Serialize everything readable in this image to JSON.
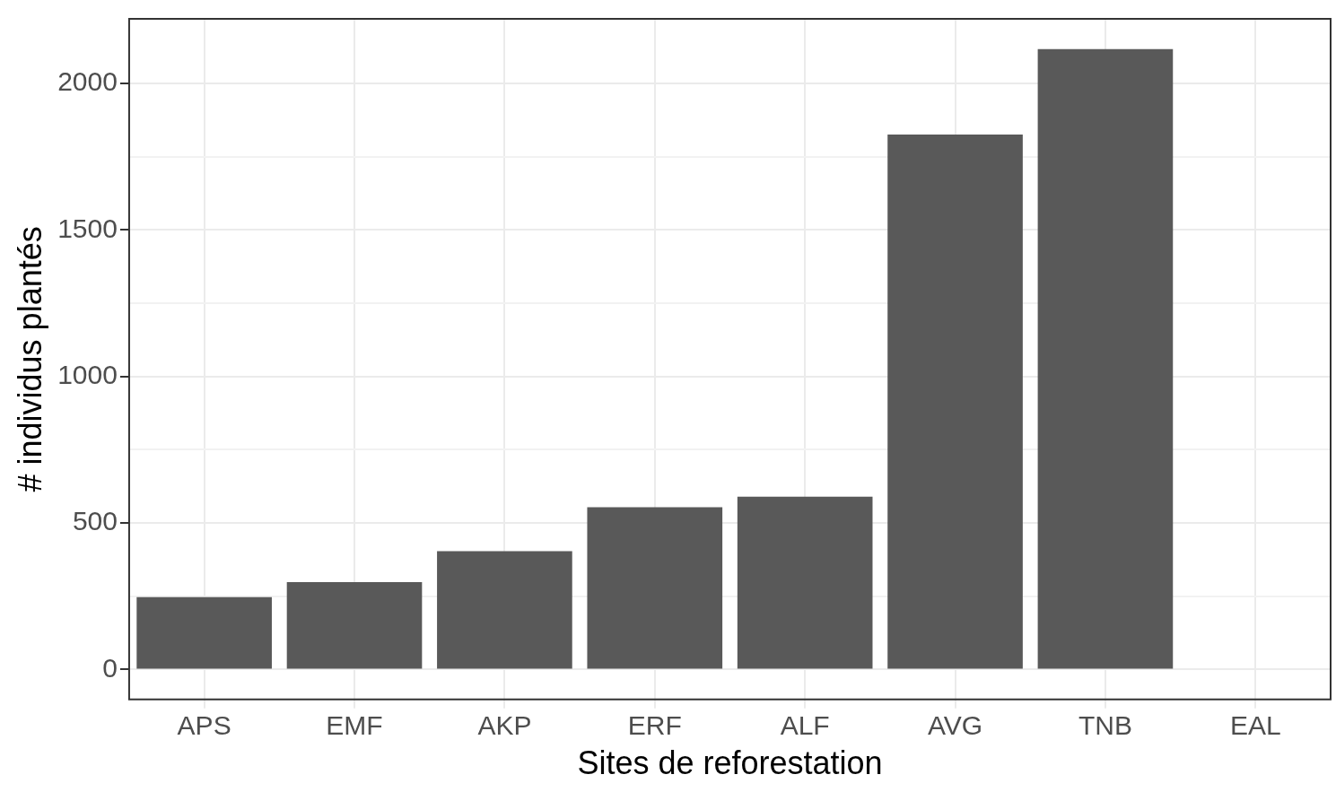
{
  "chart_data": {
    "type": "bar",
    "xlabel": "Sites de reforestation",
    "ylabel": "# individus plantés",
    "categories": [
      "APS",
      "EMF",
      "AKP",
      "ERF",
      "ALF",
      "AVG",
      "TNB",
      "EAL"
    ],
    "values": [
      247,
      298,
      404,
      554,
      590,
      1825,
      2117,
      0
    ],
    "color": "#595959",
    "ylim": [
      -102,
      2220
    ],
    "yticks": [
      0,
      {
        "value": 250,
        "label": null
      },
      500,
      {
        "value": 750,
        "label": null
      },
      1000,
      {
        "value": 1250,
        "label": null
      },
      1500,
      {
        "value": 1750,
        "label": null
      },
      2000
    ],
    "grid": true
  }
}
